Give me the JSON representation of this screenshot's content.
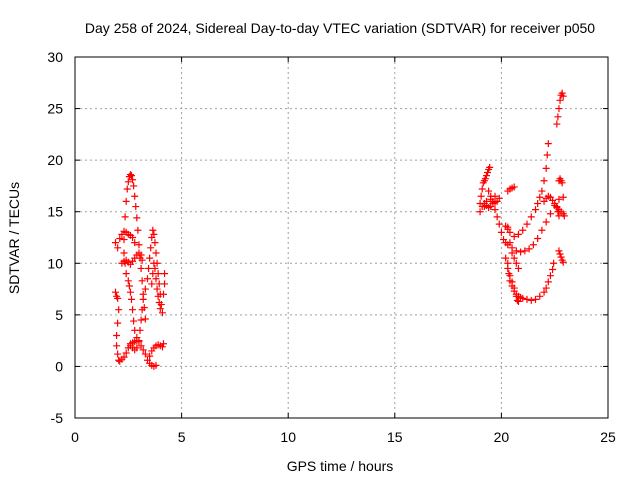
{
  "chart_data": {
    "type": "scatter",
    "title": "Day 258 of 2024, Sidereal Day-to-day VTEC variation (SDTVAR) for receiver p050",
    "xlabel": "GPS time / hours",
    "ylabel": "SDTVAR / TECUs",
    "xlim": [
      0,
      25
    ],
    "ylim": [
      -5,
      30
    ],
    "xticks": [
      "0",
      "5",
      "10",
      "15",
      "20",
      "25"
    ],
    "yticks": [
      "-5",
      "0",
      "5",
      "10",
      "15",
      "20",
      "25",
      "30"
    ],
    "grid": true,
    "marker": "+",
    "color": "#ff0000",
    "series": [
      {
        "values": [
          [
            1.9,
            12.0
          ],
          [
            2.0,
            11.5
          ],
          [
            2.1,
            12.4
          ],
          [
            2.2,
            12.8
          ],
          [
            2.3,
            13.1
          ],
          [
            2.4,
            13.0
          ],
          [
            2.5,
            12.8
          ],
          [
            2.6,
            12.7
          ],
          [
            2.7,
            12.5
          ],
          [
            2.8,
            12.0
          ],
          [
            2.35,
            14.5
          ],
          [
            2.4,
            16.0
          ],
          [
            2.45,
            17.2
          ],
          [
            2.5,
            17.9
          ],
          [
            2.55,
            18.4
          ],
          [
            2.6,
            18.6
          ],
          [
            2.65,
            18.5
          ],
          [
            2.7,
            18.1
          ],
          [
            2.75,
            17.5
          ],
          [
            2.8,
            16.5
          ],
          [
            2.85,
            15.5
          ],
          [
            2.9,
            14.4
          ],
          [
            2.95,
            13.2
          ],
          [
            3.0,
            11.8
          ],
          [
            3.05,
            10.5
          ],
          [
            3.1,
            9.5
          ],
          [
            3.15,
            8.3
          ],
          [
            3.2,
            7.0
          ],
          [
            3.25,
            5.7
          ],
          [
            3.3,
            4.6
          ],
          [
            2.3,
            12.3
          ],
          [
            2.3,
            11.0
          ],
          [
            2.35,
            10.0
          ],
          [
            2.4,
            9.0
          ],
          [
            2.5,
            8.3
          ],
          [
            2.55,
            7.8
          ],
          [
            2.6,
            7.2
          ],
          [
            2.65,
            6.5
          ],
          [
            2.7,
            5.5
          ],
          [
            2.75,
            4.4
          ],
          [
            2.8,
            3.5
          ],
          [
            2.9,
            2.8
          ],
          [
            3.0,
            2.4
          ],
          [
            3.1,
            2.0
          ],
          [
            3.2,
            1.6
          ],
          [
            3.3,
            1.2
          ],
          [
            3.4,
            0.6
          ],
          [
            3.5,
            0.3
          ],
          [
            3.6,
            0.1
          ],
          [
            3.7,
            0.0
          ],
          [
            3.8,
            0.1
          ],
          [
            2.6,
            2.0
          ],
          [
            2.7,
            1.8
          ],
          [
            2.8,
            1.6
          ],
          [
            2.9,
            1.8
          ],
          [
            3.0,
            2.5
          ],
          [
            3.05,
            3.5
          ],
          [
            3.1,
            4.5
          ],
          [
            3.15,
            5.5
          ],
          [
            3.2,
            6.5
          ],
          [
            3.3,
            7.5
          ],
          [
            3.4,
            8.5
          ],
          [
            3.45,
            9.5
          ],
          [
            3.5,
            10.5
          ],
          [
            3.55,
            11.5
          ],
          [
            3.6,
            12.5
          ],
          [
            3.65,
            13.2
          ],
          [
            3.7,
            12.8
          ],
          [
            3.75,
            12.0
          ],
          [
            3.8,
            11.0
          ],
          [
            3.85,
            10.0
          ],
          [
            3.9,
            9.0
          ],
          [
            3.95,
            8.0
          ],
          [
            4.0,
            7.0
          ],
          [
            4.05,
            6.0
          ],
          [
            4.1,
            5.2
          ],
          [
            3.6,
            8.0
          ],
          [
            3.65,
            9.0
          ],
          [
            3.7,
            10.0
          ],
          [
            3.75,
            9.5
          ],
          [
            3.8,
            8.5
          ],
          [
            3.85,
            7.5
          ],
          [
            3.9,
            6.8
          ],
          [
            3.95,
            6.2
          ],
          [
            4.0,
            5.6
          ],
          [
            1.9,
            7.2
          ],
          [
            1.95,
            6.8
          ],
          [
            2.0,
            6.6
          ],
          [
            2.05,
            5.5
          ],
          [
            2.0,
            4.2
          ],
          [
            1.95,
            3.0
          ],
          [
            1.95,
            2.0
          ],
          [
            2.0,
            1.2
          ],
          [
            2.05,
            0.6
          ],
          [
            2.1,
            0.5
          ],
          [
            2.2,
            0.7
          ],
          [
            2.3,
            0.9
          ],
          [
            2.4,
            1.3
          ],
          [
            2.5,
            1.8
          ],
          [
            2.6,
            2.2
          ],
          [
            2.7,
            2.3
          ],
          [
            2.8,
            2.4
          ],
          [
            2.9,
            2.5
          ],
          [
            2.2,
            10.0
          ],
          [
            2.3,
            10.2
          ],
          [
            2.4,
            10.3
          ],
          [
            2.5,
            10.1
          ],
          [
            2.6,
            9.9
          ],
          [
            2.7,
            10.2
          ],
          [
            2.8,
            10.5
          ],
          [
            2.9,
            10.8
          ],
          [
            3.0,
            11.0
          ],
          [
            3.1,
            10.8
          ],
          [
            3.15,
            10.3
          ],
          [
            3.5,
            1.0
          ],
          [
            3.6,
            1.5
          ],
          [
            3.7,
            1.8
          ],
          [
            3.8,
            2.0
          ],
          [
            3.9,
            2.1
          ],
          [
            4.0,
            2.0
          ],
          [
            4.1,
            1.9
          ],
          [
            4.15,
            2.2
          ],
          [
            4.2,
            9.0
          ],
          [
            4.2,
            8.0
          ],
          [
            4.15,
            7.0
          ]
        ]
      },
      {
        "values": [
          [
            19.0,
            15.8
          ],
          [
            19.05,
            16.5
          ],
          [
            19.1,
            17.2
          ],
          [
            19.15,
            17.8
          ],
          [
            19.2,
            18.0
          ],
          [
            19.25,
            18.2
          ],
          [
            19.3,
            18.5
          ],
          [
            19.35,
            18.8
          ],
          [
            19.4,
            19.1
          ],
          [
            19.45,
            19.3
          ],
          [
            19.0,
            15.0
          ],
          [
            19.1,
            15.5
          ],
          [
            19.2,
            15.8
          ],
          [
            19.3,
            15.6
          ],
          [
            19.4,
            15.4
          ],
          [
            19.5,
            15.5
          ],
          [
            19.6,
            15.8
          ],
          [
            19.7,
            15.9
          ],
          [
            19.8,
            16.0
          ],
          [
            19.4,
            17.0
          ],
          [
            19.5,
            16.5
          ],
          [
            19.6,
            16.0
          ],
          [
            19.7,
            15.2
          ],
          [
            19.8,
            14.5
          ],
          [
            19.9,
            13.8
          ],
          [
            20.0,
            13.0
          ],
          [
            20.1,
            12.3
          ],
          [
            20.2,
            12.0
          ],
          [
            20.3,
            11.8
          ],
          [
            20.5,
            11.5
          ],
          [
            20.7,
            11.2
          ],
          [
            20.9,
            11.1
          ],
          [
            21.1,
            11.2
          ],
          [
            21.3,
            11.4
          ],
          [
            21.5,
            11.8
          ],
          [
            21.7,
            12.4
          ],
          [
            21.9,
            13.2
          ],
          [
            22.1,
            14.0
          ],
          [
            22.3,
            14.8
          ],
          [
            22.5,
            15.6
          ],
          [
            22.7,
            16.2
          ],
          [
            22.9,
            16.4
          ],
          [
            19.2,
            15.5
          ],
          [
            19.3,
            16.0
          ],
          [
            19.5,
            16.2
          ],
          [
            19.7,
            16.5
          ],
          [
            19.9,
            16.3
          ],
          [
            20.3,
            17.0
          ],
          [
            20.4,
            17.2
          ],
          [
            20.5,
            17.3
          ],
          [
            20.6,
            17.4
          ],
          [
            20.2,
            13.6
          ],
          [
            20.3,
            13.3
          ],
          [
            20.4,
            13.0
          ],
          [
            20.6,
            12.6
          ],
          [
            20.8,
            12.8
          ],
          [
            21.0,
            13.2
          ],
          [
            21.2,
            13.8
          ],
          [
            21.4,
            14.5
          ],
          [
            21.6,
            15.2
          ],
          [
            21.7,
            15.8
          ],
          [
            21.8,
            16.4
          ],
          [
            21.9,
            17.0
          ],
          [
            22.0,
            18.0
          ],
          [
            22.1,
            19.2
          ],
          [
            22.15,
            20.5
          ],
          [
            22.2,
            21.6
          ],
          [
            22.0,
            16.0
          ],
          [
            22.1,
            16.3
          ],
          [
            22.2,
            16.5
          ],
          [
            22.3,
            16.4
          ],
          [
            22.4,
            16.1
          ],
          [
            22.5,
            15.8
          ],
          [
            22.6,
            15.4
          ],
          [
            22.7,
            15.2
          ],
          [
            22.8,
            15.0
          ],
          [
            22.9,
            14.8
          ],
          [
            22.95,
            14.6
          ],
          [
            20.3,
            10.0
          ],
          [
            20.35,
            9.0
          ],
          [
            20.4,
            8.3
          ],
          [
            20.5,
            7.8
          ],
          [
            20.6,
            7.3
          ],
          [
            20.7,
            7.0
          ],
          [
            20.8,
            6.8
          ],
          [
            20.9,
            6.7
          ],
          [
            21.0,
            6.6
          ],
          [
            21.2,
            6.5
          ],
          [
            21.4,
            6.4
          ],
          [
            21.6,
            6.5
          ],
          [
            21.8,
            6.8
          ],
          [
            22.0,
            7.2
          ],
          [
            22.1,
            7.6
          ],
          [
            22.2,
            8.2
          ],
          [
            22.3,
            8.8
          ],
          [
            22.4,
            9.4
          ],
          [
            22.45,
            10.0
          ],
          [
            20.2,
            10.5
          ],
          [
            20.3,
            9.5
          ],
          [
            20.4,
            8.8
          ],
          [
            20.5,
            8.2
          ],
          [
            20.6,
            7.6
          ],
          [
            20.7,
            6.8
          ],
          [
            20.75,
            6.4
          ],
          [
            20.8,
            6.3
          ],
          [
            20.3,
            13.5
          ],
          [
            20.4,
            12.0
          ],
          [
            20.5,
            11.0
          ],
          [
            20.6,
            10.5
          ],
          [
            20.7,
            10.0
          ],
          [
            20.8,
            9.5
          ],
          [
            22.6,
            23.5
          ],
          [
            22.65,
            24.2
          ],
          [
            22.7,
            25.0
          ],
          [
            22.75,
            25.8
          ],
          [
            22.8,
            26.3
          ],
          [
            22.85,
            26.5
          ],
          [
            22.9,
            26.2
          ],
          [
            22.7,
            18.0
          ],
          [
            22.75,
            18.2
          ],
          [
            22.8,
            18.0
          ],
          [
            22.85,
            17.8
          ],
          [
            22.6,
            15.5
          ],
          [
            22.65,
            15.0
          ],
          [
            22.7,
            14.6
          ],
          [
            22.7,
            11.2
          ],
          [
            22.75,
            10.9
          ],
          [
            22.8,
            10.6
          ],
          [
            22.85,
            10.3
          ],
          [
            22.9,
            10.1
          ]
        ]
      }
    ]
  }
}
